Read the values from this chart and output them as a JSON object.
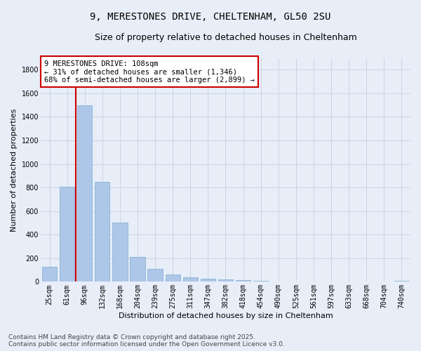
{
  "title_line1": "9, MERESTONES DRIVE, CHELTENHAM, GL50 2SU",
  "title_line2": "Size of property relative to detached houses in Cheltenham",
  "xlabel": "Distribution of detached houses by size in Cheltenham",
  "ylabel": "Number of detached properties",
  "categories": [
    "25sqm",
    "61sqm",
    "96sqm",
    "132sqm",
    "168sqm",
    "204sqm",
    "239sqm",
    "275sqm",
    "311sqm",
    "347sqm",
    "382sqm",
    "418sqm",
    "454sqm",
    "490sqm",
    "525sqm",
    "561sqm",
    "597sqm",
    "633sqm",
    "668sqm",
    "704sqm",
    "740sqm"
  ],
  "values": [
    125,
    805,
    1500,
    850,
    500,
    210,
    110,
    60,
    40,
    28,
    22,
    15,
    8,
    5,
    3,
    2,
    1,
    1,
    1,
    1,
    7
  ],
  "bar_color": "#aec6e8",
  "bar_edge_color": "#7aaed0",
  "vline_x": 1.5,
  "vline_color": "#cc0000",
  "annotation_text": "9 MERESTONES DRIVE: 108sqm\n← 31% of detached houses are smaller (1,346)\n68% of semi-detached houses are larger (2,899) →",
  "annotation_box_color": "#ffffff",
  "annotation_box_edge_color": "#cc0000",
  "ylim": [
    0,
    1900
  ],
  "yticks": [
    0,
    200,
    400,
    600,
    800,
    1000,
    1200,
    1400,
    1600,
    1800
  ],
  "grid_color": "#c8d0e0",
  "bg_color": "#e8eef8",
  "footnote": "Contains HM Land Registry data © Crown copyright and database right 2025.\nContains public sector information licensed under the Open Government Licence v3.0.",
  "title_fontsize": 10,
  "subtitle_fontsize": 9,
  "axis_label_fontsize": 8,
  "tick_fontsize": 7,
  "annotation_fontsize": 7.5,
  "footnote_fontsize": 6.5
}
